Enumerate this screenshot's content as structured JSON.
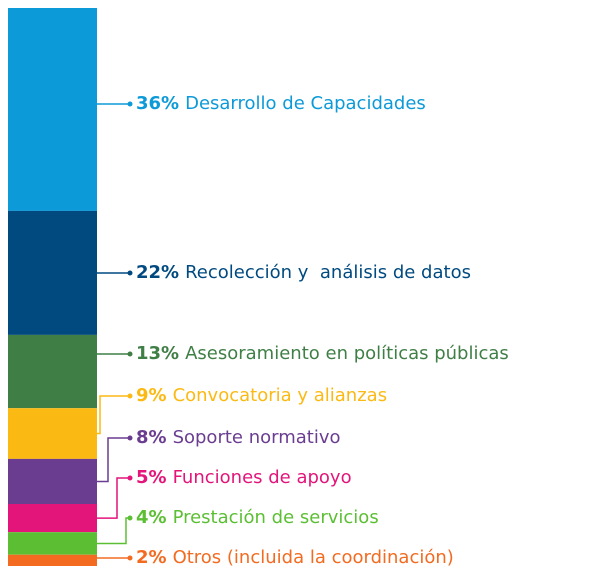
{
  "chart_data": {
    "type": "stacked-bar",
    "categories": [
      "Desarrollo de Capacidades",
      "Recolección y  análisis de datos",
      "Asesoramiento en políticas públicas",
      "Convocatoria y alianzas",
      "Soporte normativo",
      "Funciones de apoyo",
      "Prestación de servicios",
      "Otros (incluida la coordinación)"
    ],
    "values": [
      36,
      22,
      13,
      9,
      8,
      5,
      4,
      2
    ],
    "value_labels": [
      "36%",
      "22%",
      "13%",
      "9%",
      "8%",
      "5%",
      "4%",
      "2%"
    ],
    "colors": [
      "#0d9ad8",
      "#004a80",
      "#3f7f46",
      "#fbb913",
      "#6a3d91",
      "#e3147a",
      "#5cbf33",
      "#f26b21"
    ]
  }
}
